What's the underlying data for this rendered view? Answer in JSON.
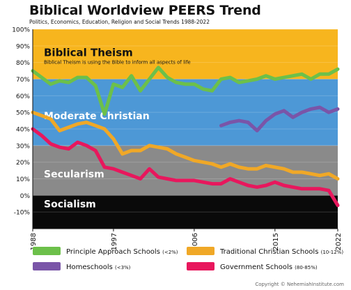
{
  "chart_data": {
    "type": "line",
    "title": "Biblical Worldview PEERS Trend",
    "subtitle": "Politics, Economics, Education, Religion and Social Trends 1988-2022",
    "xlabel": "",
    "ylabel": "",
    "xlim": [
      1988,
      2022
    ],
    "ylim": [
      -20,
      100
    ],
    "x_ticks": [
      "1988",
      "1997",
      "2006",
      "2015",
      "2022"
    ],
    "y_ticks": [
      "100%",
      "90%",
      "80%",
      "70%",
      "60%",
      "50%",
      "40%",
      "30%",
      "20%",
      "10%",
      "0%",
      "-10%"
    ],
    "bands": [
      {
        "name": "Biblical Theism",
        "from": 70,
        "to": 100,
        "color": "#f7b51e",
        "description": "Biblical Theism is using the Bible to inform all aspects of life"
      },
      {
        "name": "Moderate Christian",
        "from": 30,
        "to": 70,
        "color": "#4d98d6",
        "description": ""
      },
      {
        "name": "Secularism",
        "from": 0,
        "to": 30,
        "color": "#8a8a8a",
        "description": ""
      },
      {
        "name": "Socialism",
        "from": -20,
        "to": 0,
        "color": "#0a0a0a",
        "description": ""
      }
    ],
    "series": [
      {
        "name": "Principle Approach Schools",
        "note": "(<2%)",
        "color": "#6cc04a",
        "x": [
          1988,
          1989,
          1990,
          1991,
          1992,
          1993,
          1994,
          1995,
          1996,
          1997,
          1998,
          1999,
          2000,
          2001,
          2002,
          2003,
          2004,
          2005,
          2006,
          2007,
          2008,
          2009,
          2010,
          2011,
          2012,
          2013,
          2014,
          2015,
          2016,
          2017,
          2018,
          2019,
          2020,
          2021,
          2022
        ],
        "values": [
          75,
          71,
          67,
          69,
          68,
          71,
          71,
          66,
          49,
          67,
          65,
          72,
          63,
          70,
          77,
          71,
          68,
          67,
          67,
          64,
          63,
          70,
          71,
          68,
          69,
          70,
          72,
          70,
          71,
          72,
          73,
          70,
          73,
          73,
          76
        ]
      },
      {
        "name": "Traditional Christian Schools",
        "note": "(10-12%)",
        "color": "#f0a827",
        "x": [
          1988,
          1989,
          1990,
          1991,
          1992,
          1993,
          1994,
          1995,
          1996,
          1997,
          1998,
          1999,
          2000,
          2001,
          2002,
          2003,
          2004,
          2005,
          2006,
          2007,
          2008,
          2009,
          2010,
          2011,
          2012,
          2013,
          2014,
          2015,
          2016,
          2017,
          2018,
          2019,
          2020,
          2021,
          2022
        ],
        "values": [
          50,
          48,
          46,
          39,
          41,
          43,
          44,
          42,
          40,
          34,
          25,
          27,
          27,
          30,
          29,
          28,
          25,
          23,
          21,
          20,
          19,
          17,
          19,
          17,
          16,
          16,
          18,
          17,
          16,
          14,
          14,
          13,
          12,
          13,
          10
        ]
      },
      {
        "name": "Homeschools",
        "note": "(<3%)",
        "color": "#7a55a8",
        "x": [
          2009,
          2010,
          2011,
          2012,
          2013,
          2014,
          2015,
          2016,
          2017,
          2018,
          2019,
          2020,
          2021,
          2022
        ],
        "values": [
          42,
          44,
          45,
          44,
          39,
          45,
          49,
          51,
          47,
          50,
          52,
          53,
          50,
          52
        ]
      },
      {
        "name": "Government Schools",
        "note": "(80-85%)",
        "color": "#e8175d",
        "x": [
          1988,
          1989,
          1990,
          1991,
          1992,
          1993,
          1994,
          1995,
          1996,
          1997,
          1998,
          1999,
          2000,
          2001,
          2002,
          2003,
          2004,
          2005,
          2006,
          2007,
          2008,
          2009,
          2010,
          2011,
          2012,
          2013,
          2014,
          2015,
          2016,
          2017,
          2018,
          2019,
          2020,
          2021,
          2022
        ],
        "values": [
          40,
          36,
          31,
          29,
          28,
          32,
          30,
          27,
          17,
          16,
          14,
          12,
          10,
          16,
          11,
          10,
          9,
          9,
          9,
          8,
          7,
          7,
          10,
          8,
          6,
          5,
          6,
          8,
          6,
          5,
          4,
          4,
          4,
          3,
          -6
        ]
      }
    ]
  },
  "copyright": "Copyright © NehemiahInstitute.com"
}
